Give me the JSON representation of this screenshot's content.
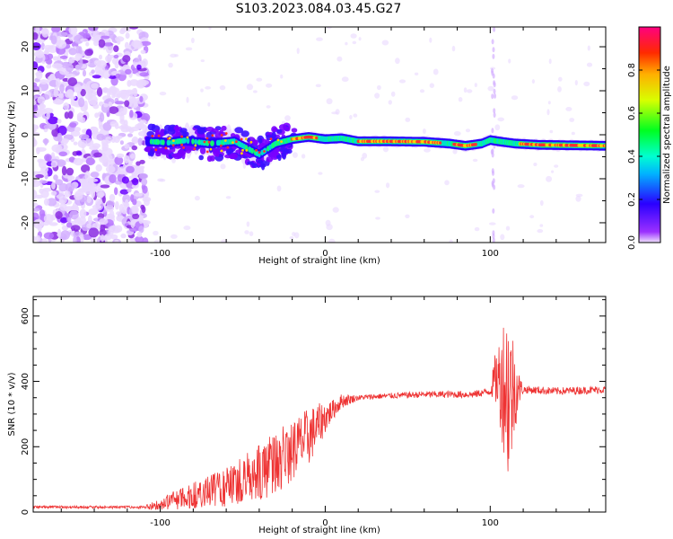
{
  "title": "S103.2023.084.03.45.G27",
  "chart_data": [
    {
      "type": "heatmap",
      "xlabel": "Height of straight line (km)",
      "ylabel": "Frequency (Hz)",
      "xlim": [
        -177,
        170
      ],
      "ylim": [
        -24.5,
        24.5
      ],
      "xticks": [
        -100,
        0,
        100
      ],
      "xtick_labels": [
        "-100",
        "0",
        "100"
      ],
      "yticks": [
        -20,
        -10,
        0,
        10,
        20
      ],
      "ytick_labels": [
        "-20",
        "-10",
        "0",
        "10",
        "20"
      ],
      "colorbar": {
        "label": "Normalized spectral amplitude",
        "range": [
          0,
          1
        ],
        "ticks": [
          0.0,
          0.2,
          0.4,
          0.6,
          0.8
        ],
        "tick_labels": [
          "0.0",
          "0.2",
          "0.4",
          "0.6",
          "0.8"
        ]
      },
      "ridge_frequency": {
        "x": [
          -108,
          -95,
          -85,
          -70,
          -55,
          -40,
          -30,
          -20,
          -10,
          0,
          10,
          20,
          40,
          60,
          75,
          85,
          95,
          100,
          105,
          115,
          130,
          150,
          170
        ],
        "y": [
          -1.5,
          -1.8,
          -1.3,
          -2.0,
          -1.5,
          -4.5,
          -2.0,
          -1.0,
          -0.5,
          -1.0,
          -0.8,
          -1.5,
          -1.5,
          -1.6,
          -2.0,
          -2.5,
          -2.0,
          -1.2,
          -1.5,
          -2.0,
          -2.3,
          -2.4,
          -2.5
        ]
      }
    },
    {
      "type": "line",
      "xlabel": "Height of straight line (km)",
      "ylabel": "SNR (10 * v/v)",
      "xlim": [
        -177,
        170
      ],
      "ylim": [
        0,
        660
      ],
      "xticks": [
        -100,
        0,
        100
      ],
      "xtick_labels": [
        "-100",
        "0",
        "100"
      ],
      "yticks": [
        0,
        200,
        400,
        600
      ],
      "ytick_labels": [
        "0",
        "200",
        "400",
        "600"
      ],
      "color": "#ee3333",
      "trend": {
        "x": [
          -177,
          -110,
          -100,
          -80,
          -60,
          -40,
          -20,
          -10,
          0,
          10,
          20,
          35,
          60,
          90,
          100,
          103,
          108,
          110,
          112,
          115,
          120,
          140,
          170
        ],
        "y": [
          15,
          15,
          25,
          50,
          75,
          120,
          190,
          230,
          290,
          340,
          350,
          355,
          360,
          360,
          370,
          410,
          400,
          380,
          360,
          380,
          375,
          370,
          375
        ]
      },
      "noise_amplitude": {
        "x": [
          -177,
          -110,
          -100,
          -60,
          -30,
          -10,
          5,
          20,
          100,
          105,
          111,
          117,
          120,
          170
        ],
        "y": [
          4,
          4,
          20,
          60,
          100,
          90,
          30,
          8,
          12,
          120,
          300,
          60,
          12,
          12
        ]
      }
    }
  ]
}
